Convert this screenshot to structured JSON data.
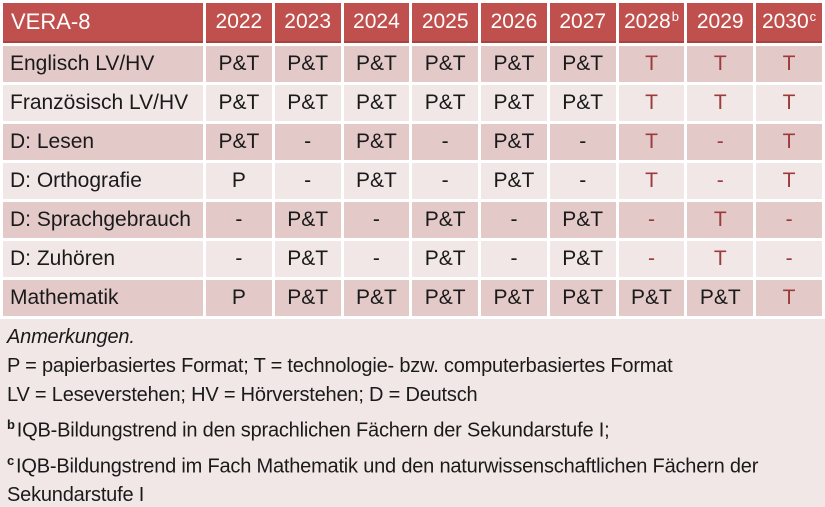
{
  "colors": {
    "header_bg": "#c0504d",
    "header_edge": "#a8423f",
    "header_text": "#ffffff",
    "row_dark": "#e4c9c9",
    "row_light": "#f2e7e7",
    "notes_bg": "#f2e7e7",
    "text": "#1a1a1a",
    "accent_red": "#9c3b3c",
    "grid_white": "#ffffff"
  },
  "table": {
    "title": "VERA-8",
    "year_headers": [
      {
        "label": "2022",
        "sup": ""
      },
      {
        "label": "2023",
        "sup": ""
      },
      {
        "label": "2024",
        "sup": ""
      },
      {
        "label": "2025",
        "sup": ""
      },
      {
        "label": "2026",
        "sup": ""
      },
      {
        "label": "2027",
        "sup": ""
      },
      {
        "label": "2028",
        "sup": "b"
      },
      {
        "label": "2029",
        "sup": ""
      },
      {
        "label": "2030",
        "sup": "c"
      }
    ],
    "rows": [
      {
        "label": "Englisch LV/HV",
        "shade": "dark",
        "cells": [
          {
            "v": "P&T",
            "red": false
          },
          {
            "v": "P&T",
            "red": false
          },
          {
            "v": "P&T",
            "red": false
          },
          {
            "v": "P&T",
            "red": false
          },
          {
            "v": "P&T",
            "red": false
          },
          {
            "v": "P&T",
            "red": false
          },
          {
            "v": "T",
            "red": true
          },
          {
            "v": "T",
            "red": true
          },
          {
            "v": "T",
            "red": true
          }
        ]
      },
      {
        "label": "Französisch LV/HV",
        "shade": "light",
        "cells": [
          {
            "v": "P&T",
            "red": false
          },
          {
            "v": "P&T",
            "red": false
          },
          {
            "v": "P&T",
            "red": false
          },
          {
            "v": "P&T",
            "red": false
          },
          {
            "v": "P&T",
            "red": false
          },
          {
            "v": "P&T",
            "red": false
          },
          {
            "v": "T",
            "red": true
          },
          {
            "v": "T",
            "red": true
          },
          {
            "v": "T",
            "red": true
          }
        ]
      },
      {
        "label": "D: Lesen",
        "shade": "dark",
        "cells": [
          {
            "v": "P&T",
            "red": false
          },
          {
            "v": "-",
            "red": false
          },
          {
            "v": "P&T",
            "red": false
          },
          {
            "v": "-",
            "red": false
          },
          {
            "v": "P&T",
            "red": false
          },
          {
            "v": "-",
            "red": false
          },
          {
            "v": "T",
            "red": true
          },
          {
            "v": "-",
            "red": true
          },
          {
            "v": "T",
            "red": true
          }
        ]
      },
      {
        "label": "D: Orthografie",
        "shade": "light",
        "cells": [
          {
            "v": "P",
            "red": false
          },
          {
            "v": "-",
            "red": false
          },
          {
            "v": "P&T",
            "red": false
          },
          {
            "v": "-",
            "red": false
          },
          {
            "v": "P&T",
            "red": false
          },
          {
            "v": "-",
            "red": false
          },
          {
            "v": "T",
            "red": true
          },
          {
            "v": "-",
            "red": true
          },
          {
            "v": "T",
            "red": true
          }
        ]
      },
      {
        "label": "D: Sprachgebrauch",
        "shade": "dark",
        "cells": [
          {
            "v": "-",
            "red": false
          },
          {
            "v": "P&T",
            "red": false
          },
          {
            "v": "-",
            "red": false
          },
          {
            "v": "P&T",
            "red": false
          },
          {
            "v": "-",
            "red": false
          },
          {
            "v": "P&T",
            "red": false
          },
          {
            "v": "-",
            "red": true
          },
          {
            "v": "T",
            "red": true
          },
          {
            "v": "-",
            "red": true
          }
        ]
      },
      {
        "label": "D: Zuhören",
        "shade": "light",
        "cells": [
          {
            "v": "-",
            "red": false
          },
          {
            "v": "P&T",
            "red": false
          },
          {
            "v": "-",
            "red": false
          },
          {
            "v": "P&T",
            "red": false
          },
          {
            "v": "-",
            "red": false
          },
          {
            "v": "P&T",
            "red": false
          },
          {
            "v": "-",
            "red": true
          },
          {
            "v": "T",
            "red": true
          },
          {
            "v": "-",
            "red": true
          }
        ]
      },
      {
        "label": "Mathematik",
        "shade": "dark",
        "cells": [
          {
            "v": "P",
            "red": false
          },
          {
            "v": "P&T",
            "red": false
          },
          {
            "v": "P&T",
            "red": false
          },
          {
            "v": "P&T",
            "red": false
          },
          {
            "v": "P&T",
            "red": false
          },
          {
            "v": "P&T",
            "red": false
          },
          {
            "v": "P&T",
            "red": false
          },
          {
            "v": "P&T",
            "red": false
          },
          {
            "v": "T",
            "red": true
          }
        ]
      }
    ]
  },
  "notes": {
    "lines": [
      {
        "sup": "",
        "italic": true,
        "text": "Anmerkungen."
      },
      {
        "sup": "",
        "italic": false,
        "text": "P = papierbasiertes Format; T = technologie- bzw. computerbasiertes Format"
      },
      {
        "sup": "",
        "italic": false,
        "text": "LV = Leseverstehen; HV = Hörverstehen; D = Deutsch"
      },
      {
        "sup": "b",
        "italic": false,
        "text": "IQB-Bildungstrend in den sprachlichen Fächern der Sekundarstufe I;"
      },
      {
        "sup": "c",
        "italic": false,
        "text": "IQB-Bildungstrend im Fach Mathematik und den naturwissenschaftlichen Fächern der Sekundarstufe I"
      }
    ]
  }
}
